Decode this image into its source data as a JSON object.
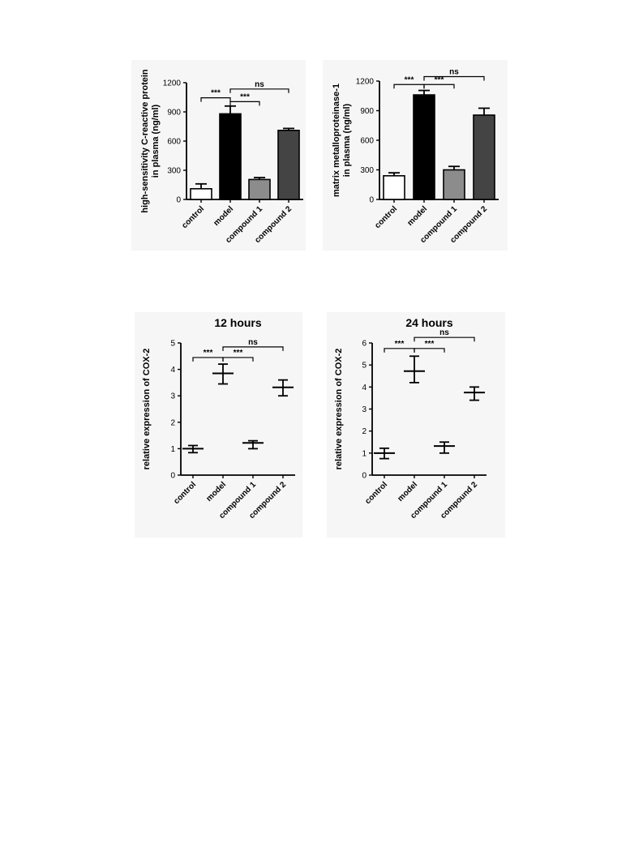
{
  "chart_data": [
    {
      "id": "crp",
      "type": "bar",
      "title": "",
      "ylabel": [
        "high-sensitivity C-reactive protein",
        "in plasma (ng/ml)"
      ],
      "categories": [
        "control",
        "model",
        "compound 1",
        "compound 2"
      ],
      "values": [
        110,
        880,
        205,
        710
      ],
      "errors": [
        50,
        80,
        20,
        20
      ],
      "bar_colors": [
        "#ffffff",
        "#000000",
        "#8c8c8c",
        "#444444"
      ],
      "ylim": [
        0,
        1200
      ],
      "yticks": [
        0,
        300,
        600,
        900,
        1200
      ],
      "brackets": [
        {
          "from": 0,
          "to": 1,
          "label": "***",
          "y": 1045
        },
        {
          "from": 1,
          "to": 2,
          "label": "***",
          "y": 1005
        },
        {
          "from": 1,
          "to": 3,
          "label": "ns",
          "y": 1135
        }
      ]
    },
    {
      "id": "mmp",
      "type": "bar",
      "title": "",
      "ylabel": [
        "matrix metalloproteinase-1",
        "in plasma (ng/ml)"
      ],
      "categories": [
        "control",
        "model",
        "compound 1",
        "compound 2"
      ],
      "values": [
        240,
        1060,
        300,
        855
      ],
      "errors": [
        30,
        45,
        35,
        70
      ],
      "bar_colors": [
        "#ffffff",
        "#000000",
        "#8c8c8c",
        "#444444"
      ],
      "ylim": [
        0,
        1200
      ],
      "yticks": [
        0,
        300,
        600,
        900,
        1200
      ],
      "brackets": [
        {
          "from": 0,
          "to": 1,
          "label": "***",
          "y": 1165
        },
        {
          "from": 1,
          "to": 2,
          "label": "***",
          "y": 1165
        },
        {
          "from": 1,
          "to": 3,
          "label": "ns",
          "y": 1245
        }
      ]
    },
    {
      "id": "cox12",
      "type": "scatter",
      "title": "12 hours",
      "ylabel": [
        "relative expression of COX-2"
      ],
      "categories": [
        "control",
        "model",
        "compound 1",
        "compound 2"
      ],
      "means": [
        1.0,
        3.85,
        1.22,
        3.32
      ],
      "lower": [
        0.85,
        3.45,
        1.0,
        3.0
      ],
      "upper": [
        1.12,
        4.2,
        1.3,
        3.6
      ],
      "ylim": [
        0,
        5
      ],
      "yticks": [
        0,
        1,
        2,
        3,
        4,
        5
      ],
      "brackets": [
        {
          "from": 0,
          "to": 1,
          "label": "***",
          "y": 4.45
        },
        {
          "from": 1,
          "to": 2,
          "label": "***",
          "y": 4.45
        },
        {
          "from": 1,
          "to": 3,
          "label": "ns",
          "y": 4.85
        }
      ]
    },
    {
      "id": "cox24",
      "type": "scatter",
      "title": "24 hours",
      "ylabel": [
        "relative expression of COX-2"
      ],
      "categories": [
        "control",
        "model",
        "compound 1",
        "compound 2"
      ],
      "means": [
        1.0,
        4.72,
        1.32,
        3.75
      ],
      "lower": [
        0.75,
        4.2,
        1.0,
        3.4
      ],
      "upper": [
        1.22,
        5.4,
        1.5,
        4.0
      ],
      "ylim": [
        0,
        6
      ],
      "yticks": [
        0,
        1,
        2,
        3,
        4,
        5,
        6
      ],
      "brackets": [
        {
          "from": 0,
          "to": 1,
          "label": "***",
          "y": 5.75
        },
        {
          "from": 1,
          "to": 2,
          "label": "***",
          "y": 5.75
        },
        {
          "from": 1,
          "to": 3,
          "label": "ns",
          "y": 6.25
        }
      ]
    }
  ]
}
